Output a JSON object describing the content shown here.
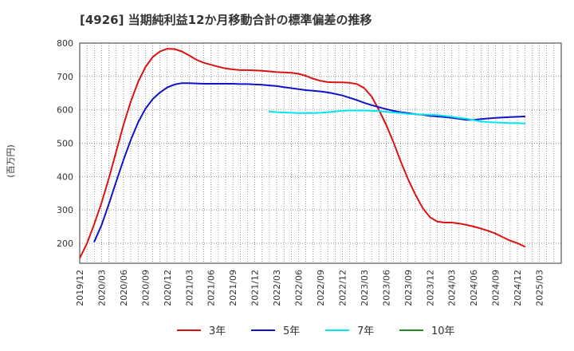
{
  "chart_data": {
    "type": "line",
    "title": "[4926]  当期純利益12か月移動合計の標準偏差の推移",
    "xlabel": "",
    "ylabel": "(百万円)",
    "ylim": [
      140,
      800
    ],
    "yticks": [
      200,
      300,
      400,
      500,
      600,
      700,
      800
    ],
    "xlim": [
      0,
      66
    ],
    "x_tick_labels": [
      "2019/12",
      "2020/03",
      "2020/06",
      "2020/09",
      "2020/12",
      "2021/03",
      "2021/06",
      "2021/09",
      "2021/12",
      "2022/03",
      "2022/06",
      "2022/09",
      "2022/12",
      "2023/03",
      "2023/06",
      "2023/09",
      "2023/12",
      "2024/03",
      "2024/06",
      "2024/09",
      "2024/12",
      "2025/03"
    ],
    "x_index_note": "month index: 0 = 2019/12, 3 = 2020/03, ... 63 = 2025/03",
    "grid": true,
    "legend_position": "bottom",
    "series": [
      {
        "name": "3年",
        "color": "#dd1111",
        "x": [
          0,
          1,
          2,
          3,
          4,
          5,
          6,
          7,
          8,
          9,
          10,
          11,
          12,
          13,
          14,
          15,
          16,
          17,
          18,
          19,
          20,
          21,
          22,
          23,
          24,
          25,
          26,
          27,
          28,
          29,
          30,
          31,
          32,
          33,
          34,
          35,
          36,
          37,
          38,
          39,
          40,
          41,
          42,
          43,
          44,
          45,
          46,
          47,
          48,
          49,
          50,
          51,
          52,
          53,
          54,
          55,
          56,
          57,
          58,
          59,
          60,
          61
        ],
        "values": [
          155,
          200,
          258,
          322,
          395,
          475,
          555,
          625,
          683,
          728,
          758,
          775,
          783,
          782,
          775,
          763,
          750,
          741,
          735,
          729,
          724,
          721,
          719,
          719,
          718,
          717,
          715,
          713,
          712,
          711,
          708,
          702,
          693,
          687,
          683,
          682,
          682,
          681,
          677,
          665,
          640,
          600,
          555,
          503,
          445,
          392,
          346,
          306,
          278,
          265,
          262,
          262,
          259,
          255,
          250,
          244,
          237,
          229,
          218,
          208,
          200,
          190
        ],
        "visible_to_x": 61
      },
      {
        "name": "5年",
        "color": "#1111cc",
        "x": [
          2,
          3,
          4,
          5,
          6,
          7,
          8,
          9,
          10,
          11,
          12,
          13,
          14,
          15,
          16,
          17,
          18,
          19,
          20,
          21,
          22,
          23,
          24,
          25,
          26,
          27,
          28,
          29,
          30,
          31,
          32,
          33,
          34,
          35,
          36,
          37,
          38,
          39,
          40,
          41,
          42,
          43,
          44,
          45,
          46,
          47,
          48,
          49,
          50,
          51,
          52,
          53,
          54,
          55,
          56,
          57,
          58,
          59,
          60,
          61
        ],
        "values": [
          205,
          255,
          318,
          385,
          450,
          510,
          562,
          603,
          632,
          652,
          667,
          676,
          680,
          680,
          679,
          678,
          678,
          678,
          678,
          678,
          677,
          677,
          676,
          675,
          673,
          671,
          668,
          665,
          662,
          659,
          657,
          655,
          652,
          648,
          643,
          636,
          629,
          621,
          614,
          608,
          602,
          597,
          593,
          590,
          587,
          585,
          582,
          580,
          578,
          576,
          573,
          570,
          570,
          572,
          574,
          576,
          577,
          578,
          579,
          580
        ],
        "visible_to_x": 61
      },
      {
        "name": "7年",
        "color": "#00e5ee",
        "x": [
          26,
          27,
          28,
          29,
          30,
          31,
          32,
          33,
          34,
          35,
          36,
          37,
          38,
          39,
          40,
          41,
          42,
          43,
          44,
          45,
          46,
          47,
          48,
          49,
          50,
          51,
          52,
          53,
          54,
          55,
          56,
          57,
          58,
          59,
          60,
          61
        ],
        "values": [
          595,
          593,
          592,
          591,
          590,
          590,
          590,
          591,
          593,
          595,
          597,
          598,
          598,
          598,
          597,
          596,
          594,
          592,
          590,
          588,
          587,
          586,
          585,
          584,
          582,
          579,
          576,
          573,
          569,
          565,
          563,
          562,
          561,
          560,
          560,
          559
        ],
        "visible_to_x": 61
      },
      {
        "name": "10年",
        "color": "#228b22",
        "x": [],
        "values": []
      }
    ]
  }
}
